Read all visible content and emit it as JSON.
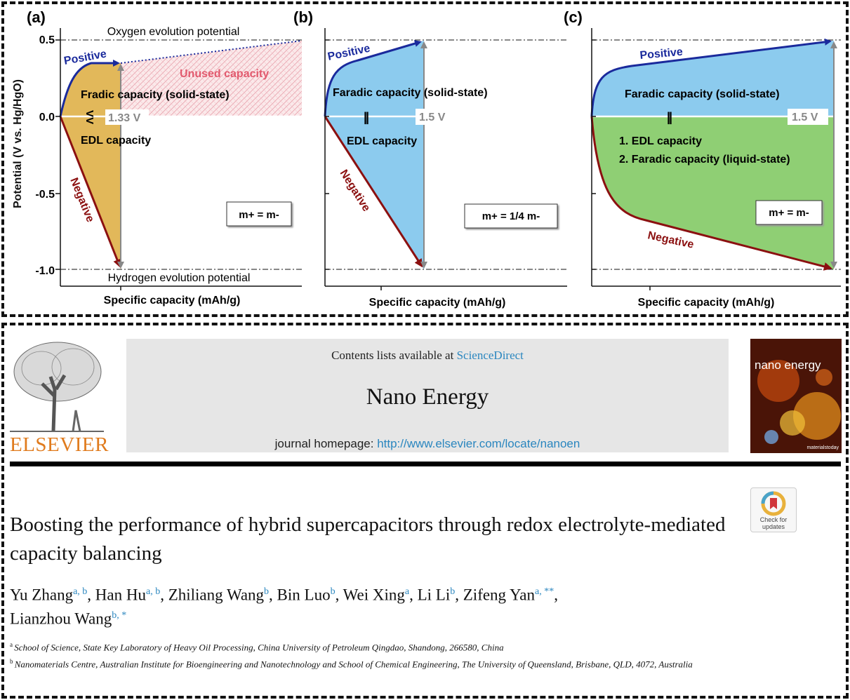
{
  "figure": {
    "colors": {
      "positive": "#1a2a9c",
      "negative": "#8b1010",
      "panel_a_fill": "#e2b85a",
      "panel_bc_fill": "#8ccbee",
      "panel_c_lower_fill": "#8fcf74",
      "unused": "#e25a6e"
    },
    "y_axis_label": "Potential (V vs. Hg/HgO)",
    "y_ticks": [
      "0.5",
      "0.0",
      "-0.5",
      "-1.0"
    ],
    "x_axis_label": "Specific capacity (mAh/g)",
    "oxygen_label": "Oxygen evolution potential",
    "hydrogen_label": "Hydrogen evolution potential",
    "positive_label": "Positive",
    "negative_label": "Negative",
    "panels": [
      {
        "letter": "(a)",
        "upper_text": "Fradic capacity (solid-state)",
        "lower_text": "EDL capacity",
        "relation": "V V",
        "unused_label": "Unused capacity",
        "voltage": "1.33 V",
        "mass_box": "m+ = m-"
      },
      {
        "letter": "(b)",
        "upper_text": "Faradic capacity (solid-state)",
        "lower_text": "EDL capacity",
        "relation": "||",
        "voltage": "1.5 V",
        "mass_box": "m+ = 1/4 m-"
      },
      {
        "letter": "(c)",
        "upper_text": "Faradic capacity (solid-state)",
        "lower_text_1": "1. EDL capacity",
        "lower_text_2": "2. Faradic capacity (liquid-state)",
        "relation": "||",
        "voltage": "1.5 V",
        "mass_box": "m+ = m-"
      }
    ]
  },
  "article": {
    "contents_prefix": "Contents lists available at ",
    "contents_link": "ScienceDirect",
    "journal": "Nano Energy",
    "homepage_prefix": "journal homepage: ",
    "homepage_url": "http://www.elsevier.com/locate/nanoen",
    "publisher": "ELSEVIER",
    "cover_title": "nano energy",
    "cover_brand": "materialstoday",
    "check_updates": "Check for updates",
    "title": "Boosting the performance of hybrid supercapacitors through redox electrolyte-mediated capacity balancing",
    "authors": [
      {
        "name": "Yu Zhang",
        "sup": "a, b",
        "sep": ", "
      },
      {
        "name": "Han Hu",
        "sup": "a, b",
        "sep": ", "
      },
      {
        "name": "Zhiliang Wang",
        "sup": "b",
        "sep": ", "
      },
      {
        "name": "Bin Luo",
        "sup": "b",
        "sep": ", "
      },
      {
        "name": "Wei Xing",
        "sup": "a",
        "sep": ", "
      },
      {
        "name": "Li Li",
        "sup": "b",
        "sep": ", "
      },
      {
        "name": "Zifeng Yan",
        "sup": "a, **",
        "sep": ","
      },
      {
        "name": "Lianzhou Wang",
        "sup": "b, *",
        "sep": ""
      }
    ],
    "affiliations": [
      {
        "key": "a",
        "text": "School of Science, State Key Laboratory of Heavy Oil Processing, China University of Petroleum Qingdao, Shandong, 266580, China"
      },
      {
        "key": "b",
        "text": "Nanomaterials Centre, Australian Institute for Bioengineering and Nanotechnology and School of Chemical Engineering, The University of Queensland, Brisbane, QLD, 4072, Australia"
      }
    ]
  }
}
